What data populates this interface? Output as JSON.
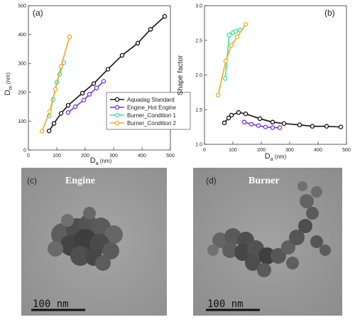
{
  "chart_data": [
    {
      "type": "line",
      "panel_label": "(a)",
      "ylabel_main": "D",
      "ylabel_sub": "m",
      "ylabel_unit": " (nm)",
      "xlabel_main": "D",
      "xlabel_sub": "a",
      "xlabel_unit": " (nm)",
      "xlim": [
        0,
        500
      ],
      "ylim": [
        0,
        500
      ],
      "xticks": [
        0,
        100,
        200,
        300,
        400,
        500
      ],
      "yticks": [
        0,
        100,
        200,
        300,
        400,
        500
      ],
      "xtick_labels": [
        "0",
        "100",
        "200",
        "300",
        "400",
        "500"
      ],
      "ytick_labels": [
        "0",
        "100",
        "200",
        "300",
        "400",
        "500"
      ],
      "legend_position": "bottom-right",
      "series": [
        {
          "name": "Aquadag Standard",
          "color": "#111111",
          "x": [
            73,
            90,
            115,
            140,
            190,
            230,
            280,
            330,
            385,
            430,
            480
          ],
          "y": [
            66,
            92,
            127,
            155,
            197,
            230,
            280,
            328,
            370,
            418,
            463
          ]
        },
        {
          "name": "Engine_Hot Engine",
          "color": "#7a2fe0",
          "x": [
            140,
            165,
            195,
            215,
            240,
            265
          ],
          "y": [
            130,
            150,
            173,
            193,
            215,
            238
          ]
        },
        {
          "name": "Burner_Condition 1",
          "color": "#2ee6a0",
          "x": [
            73,
            87,
            100,
            110,
            125
          ],
          "y": [
            118,
            175,
            235,
            262,
            303
          ]
        },
        {
          "name": "Burner_Condition 2",
          "color": "#f5a623",
          "x": [
            48,
            75,
            95,
            115,
            145
          ],
          "y": [
            65,
            133,
            210,
            290,
            392
          ]
        }
      ]
    },
    {
      "type": "line",
      "panel_label": "(b)",
      "ylabel": "Shape factor",
      "xlabel_main": "D",
      "xlabel_sub": "a",
      "xlabel_unit": " (nm)",
      "xlim": [
        0,
        500
      ],
      "ylim": [
        1.0,
        3.0
      ],
      "xticks": [
        0,
        100,
        200,
        300,
        400,
        500
      ],
      "yticks": [
        1.0,
        1.5,
        2.0,
        2.5,
        3.0
      ],
      "xtick_labels": [
        "0",
        "100",
        "200",
        "300",
        "400",
        "500"
      ],
      "ytick_labels": [
        "1.0",
        "1.5",
        "2.0",
        "2.5",
        "3.0"
      ],
      "series": [
        {
          "name": "Aquadag Standard",
          "color": "#111111",
          "x": [
            70,
            85,
            95,
            120,
            145,
            195,
            240,
            280,
            335,
            380,
            430,
            480
          ],
          "y": [
            1.31,
            1.38,
            1.42,
            1.46,
            1.44,
            1.37,
            1.32,
            1.3,
            1.28,
            1.26,
            1.26,
            1.25
          ]
        },
        {
          "name": "Engine_Hot Engine",
          "color": "#7a2fe0",
          "x": [
            140,
            165,
            190,
            215,
            240,
            265
          ],
          "y": [
            1.32,
            1.29,
            1.27,
            1.25,
            1.24,
            1.24
          ]
        },
        {
          "name": "Burner_Condition 1",
          "color": "#2ee6a0",
          "x": [
            73,
            87,
            100,
            110,
            125
          ],
          "y": [
            1.95,
            2.58,
            2.61,
            2.63,
            2.65
          ]
        },
        {
          "name": "Burner_Condition 2",
          "color": "#f5a623",
          "x": [
            48,
            75,
            95,
            115,
            145
          ],
          "y": [
            1.71,
            2.2,
            2.43,
            2.55,
            2.73
          ]
        }
      ]
    }
  ],
  "micrographs": {
    "left": {
      "panel_label": "(c)",
      "title": "Engine",
      "scale_bar": "100 nm"
    },
    "right": {
      "panel_label": "(d)",
      "title": "Burner",
      "scale_bar": "100 nm"
    }
  }
}
